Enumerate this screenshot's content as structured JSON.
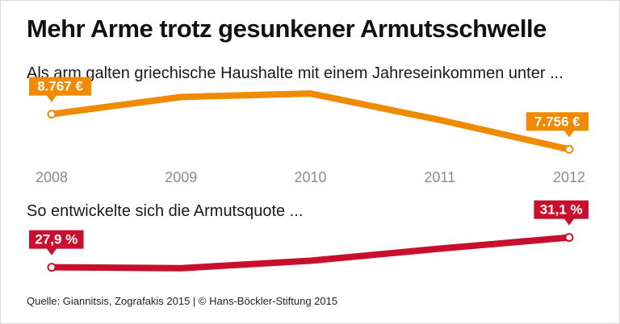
{
  "title": "Mehr Arme trotz gesunkener Armutsschwelle",
  "subtitle_threshold": "Als arm galten griechische Haushalte mit einem Jahreseinkommen unter ...",
  "subtitle_rate": "So entwickelte sich die Armutsquote ...",
  "source": "Quelle: Giannitsis, Zografakis 2015 | © Hans-Böckler-Stiftung 2015",
  "colors": {
    "threshold": "#f08a00",
    "rate": "#c8102e"
  },
  "chart_data": [
    {
      "type": "line",
      "x": [
        "2008",
        "2009",
        "2010",
        "2011",
        "2012"
      ],
      "series": [
        {
          "values": [
            8767,
            9260,
            9360,
            8600,
            7756
          ]
        }
      ],
      "data_labels": [
        {
          "index": 0,
          "text": "8.767 €"
        },
        {
          "index": 4,
          "text": "7.756 €"
        }
      ],
      "ylim": [
        7600,
        9500
      ]
    },
    {
      "type": "line",
      "x": [
        "2008",
        "2009",
        "2010",
        "2011",
        "2012"
      ],
      "series": [
        {
          "values": [
            27.9,
            27.8,
            28.6,
            29.9,
            31.1
          ]
        }
      ],
      "data_labels": [
        {
          "index": 0,
          "text": "27,9 %"
        },
        {
          "index": 4,
          "text": "31,1 %"
        }
      ],
      "ylim": [
        27.0,
        31.5
      ]
    }
  ]
}
